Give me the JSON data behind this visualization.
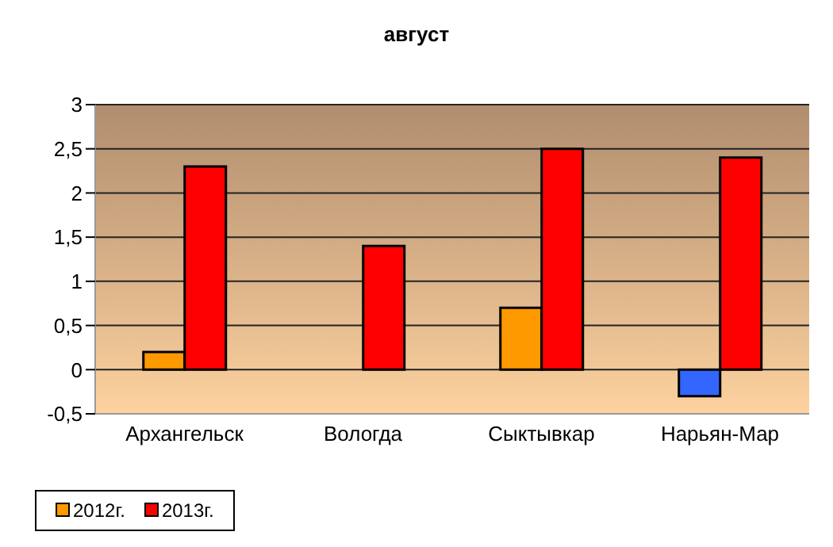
{
  "chart_data": {
    "type": "bar",
    "title": "август",
    "categories": [
      "Архангельск",
      "Вологда",
      "Сыктывкар",
      "Нарьян-Мар"
    ],
    "series": [
      {
        "name": "2012г.",
        "color": "#ff9900",
        "colors": [
          "#ff9900",
          "#ff9900",
          "#ff9900",
          "#3366ff"
        ],
        "values": [
          0.2,
          null,
          0.7,
          -0.3
        ]
      },
      {
        "name": "2013г.",
        "color": "#ff0000",
        "values": [
          2.3,
          1.4,
          2.5,
          2.4
        ]
      }
    ],
    "ylim": [
      -0.5,
      3
    ],
    "yticks": [
      {
        "value": -0.5,
        "label": "-0,5"
      },
      0,
      {
        "value": 0.5,
        "label": "0,5"
      },
      1,
      {
        "value": 1.5,
        "label": "1,5"
      },
      2,
      {
        "value": 2.5,
        "label": "2,5"
      },
      3
    ],
    "grid": "y",
    "legend": "bottom"
  }
}
